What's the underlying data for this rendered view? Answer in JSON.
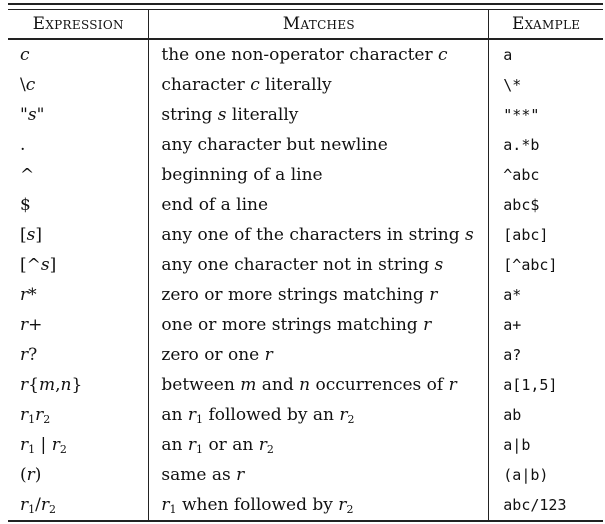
{
  "headers": [
    "Expression",
    "Matches",
    "Example"
  ],
  "rows": [
    {
      "expr_html": "<i>c</i>",
      "matches_html": "the one non-operator character <i>c</i>",
      "example": "a"
    },
    {
      "expr_html": "\\<i>c</i>",
      "matches_html": "character <i>c</i> literally",
      "example": "\\*"
    },
    {
      "expr_html": "\"<i>s</i>\"",
      "matches_html": "string <i>s</i> literally",
      "example": "\"**\""
    },
    {
      "expr_html": ".",
      "matches_html": "any character but newline",
      "example": "a.*b"
    },
    {
      "expr_html": "^",
      "matches_html": "beginning of a line",
      "example": "^abc"
    },
    {
      "expr_html": "$",
      "matches_html": "end of a line",
      "example": "abc$"
    },
    {
      "expr_html": "[<i>s</i>]",
      "matches_html": "any one of the characters in string <i>s</i>",
      "example": "[abc]"
    },
    {
      "expr_html": "[^<i>s</i>]",
      "matches_html": "any one character not in string <i>s</i>",
      "example": "[^abc]"
    },
    {
      "expr_html": "<i>r</i>*",
      "matches_html": "zero or more strings matching <i>r</i>",
      "example": "a*"
    },
    {
      "expr_html": "<i>r</i>+",
      "matches_html": "one or more strings matching <i>r</i>",
      "example": "a+"
    },
    {
      "expr_html": "<i>r</i>?",
      "matches_html": "zero or one <i>r</i>",
      "example": "a?"
    },
    {
      "expr_html": "<i>r</i>{<i>m</i>,<i>n</i>}",
      "matches_html": "between <i>m</i> and <i>n</i> occurrences of <i>r</i>",
      "example": "a[1,5]"
    },
    {
      "expr_html": "<i>r</i><sub>1</sub><i>r</i><sub>2</sub>",
      "matches_html": "an <i>r</i><sub>1</sub> followed by an <i>r</i><sub>2</sub>",
      "example": "ab"
    },
    {
      "expr_html": "<i>r</i><sub>1</sub> | <i>r</i><sub>2</sub>",
      "matches_html": "an <i>r</i><sub>1</sub> or an <i>r</i><sub>2</sub>",
      "example": "a|b"
    },
    {
      "expr_html": "(<i>r</i>)",
      "matches_html": "same as <i>r</i>",
      "example": "(a|b)"
    },
    {
      "expr_html": "<i>r</i><sub>1</sub>/<i>r</i><sub>2</sub>",
      "matches_html": "<i>r</i><sub>1</sub> when followed by <i>r</i><sub>2</sub>",
      "example": "abc/123"
    }
  ]
}
